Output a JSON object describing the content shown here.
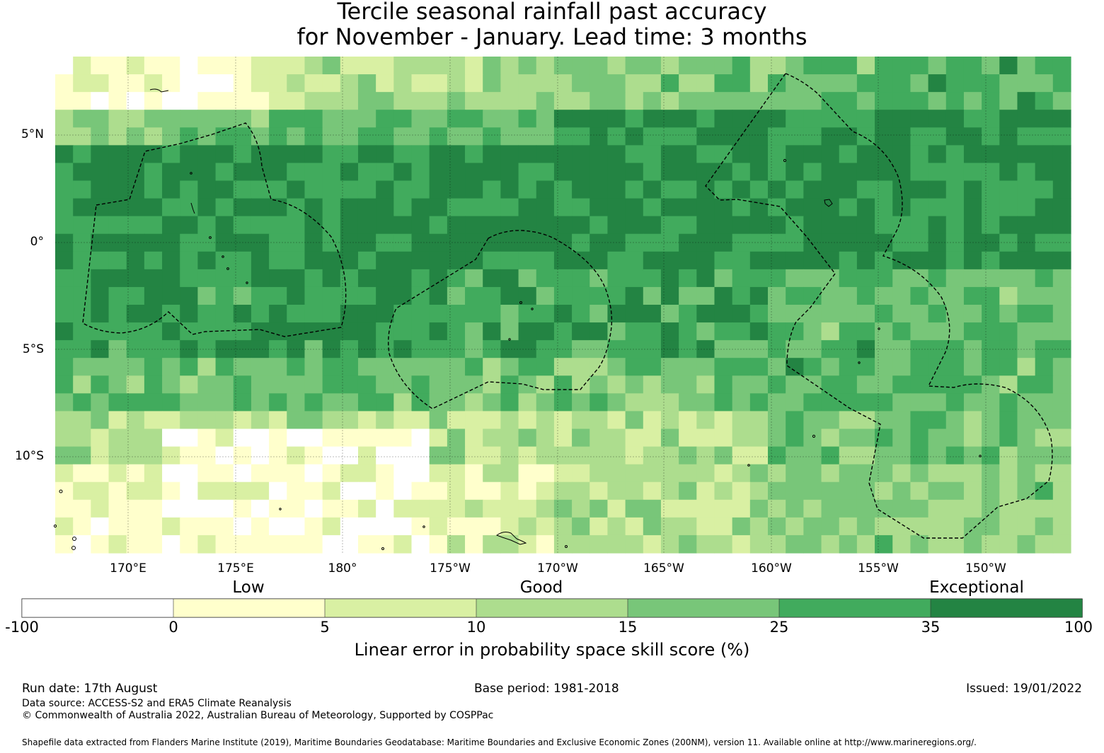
{
  "title": {
    "line1": "Tercile seasonal rainfall past accuracy",
    "line2": "for November - January. Lead time: 3 months"
  },
  "map": {
    "lat_labels": [
      "5°N",
      "0°",
      "5°S",
      "10°S"
    ],
    "lon_labels": [
      "170°E",
      "175°E",
      "180°",
      "175°W",
      "170°W",
      "165°W",
      "160°W",
      "155°W",
      "150°W"
    ],
    "extent": {
      "lon_min": 166.6,
      "lon_max": 213.8,
      "lat_min": -14.6,
      "lat_max": 8.6
    },
    "grid_lons": [
      170,
      175,
      180,
      185,
      190,
      195,
      200,
      205,
      210
    ],
    "grid_lats": [
      5,
      0,
      -5,
      -10
    ]
  },
  "colorbar": {
    "category_labels": [
      "Low",
      "Good",
      "Exceptional"
    ],
    "tick_labels": [
      "-100",
      "0",
      "5",
      "10",
      "15",
      "25",
      "35",
      "100"
    ],
    "colors": [
      "#ffffff",
      "#ffffcc",
      "#d9f0a3",
      "#addd8e",
      "#78c679",
      "#41ab5d",
      "#238443"
    ],
    "title": "Linear error in probability space skill score (%)"
  },
  "footer": {
    "run_date": "Run date: 17th August",
    "base_period": "Base period: 1981-2018",
    "issued": "Issued: 19/01/2022",
    "data_source": "Data source: ACCESS-S2 and ERA5 Climate Reanalysis",
    "copyright": "© Commonwealth of Australia 2022, Australian Bureau of Meteorology, Supported by COSPPac",
    "shapefile": "Shapefile data extracted from Flanders Marine Institute (2019), Maritime Boundaries Geodatabase: Maritime Boundaries and Exclusive Economic Zones (200NM), version 11. Available online at http://www.marineregions.org/."
  }
}
